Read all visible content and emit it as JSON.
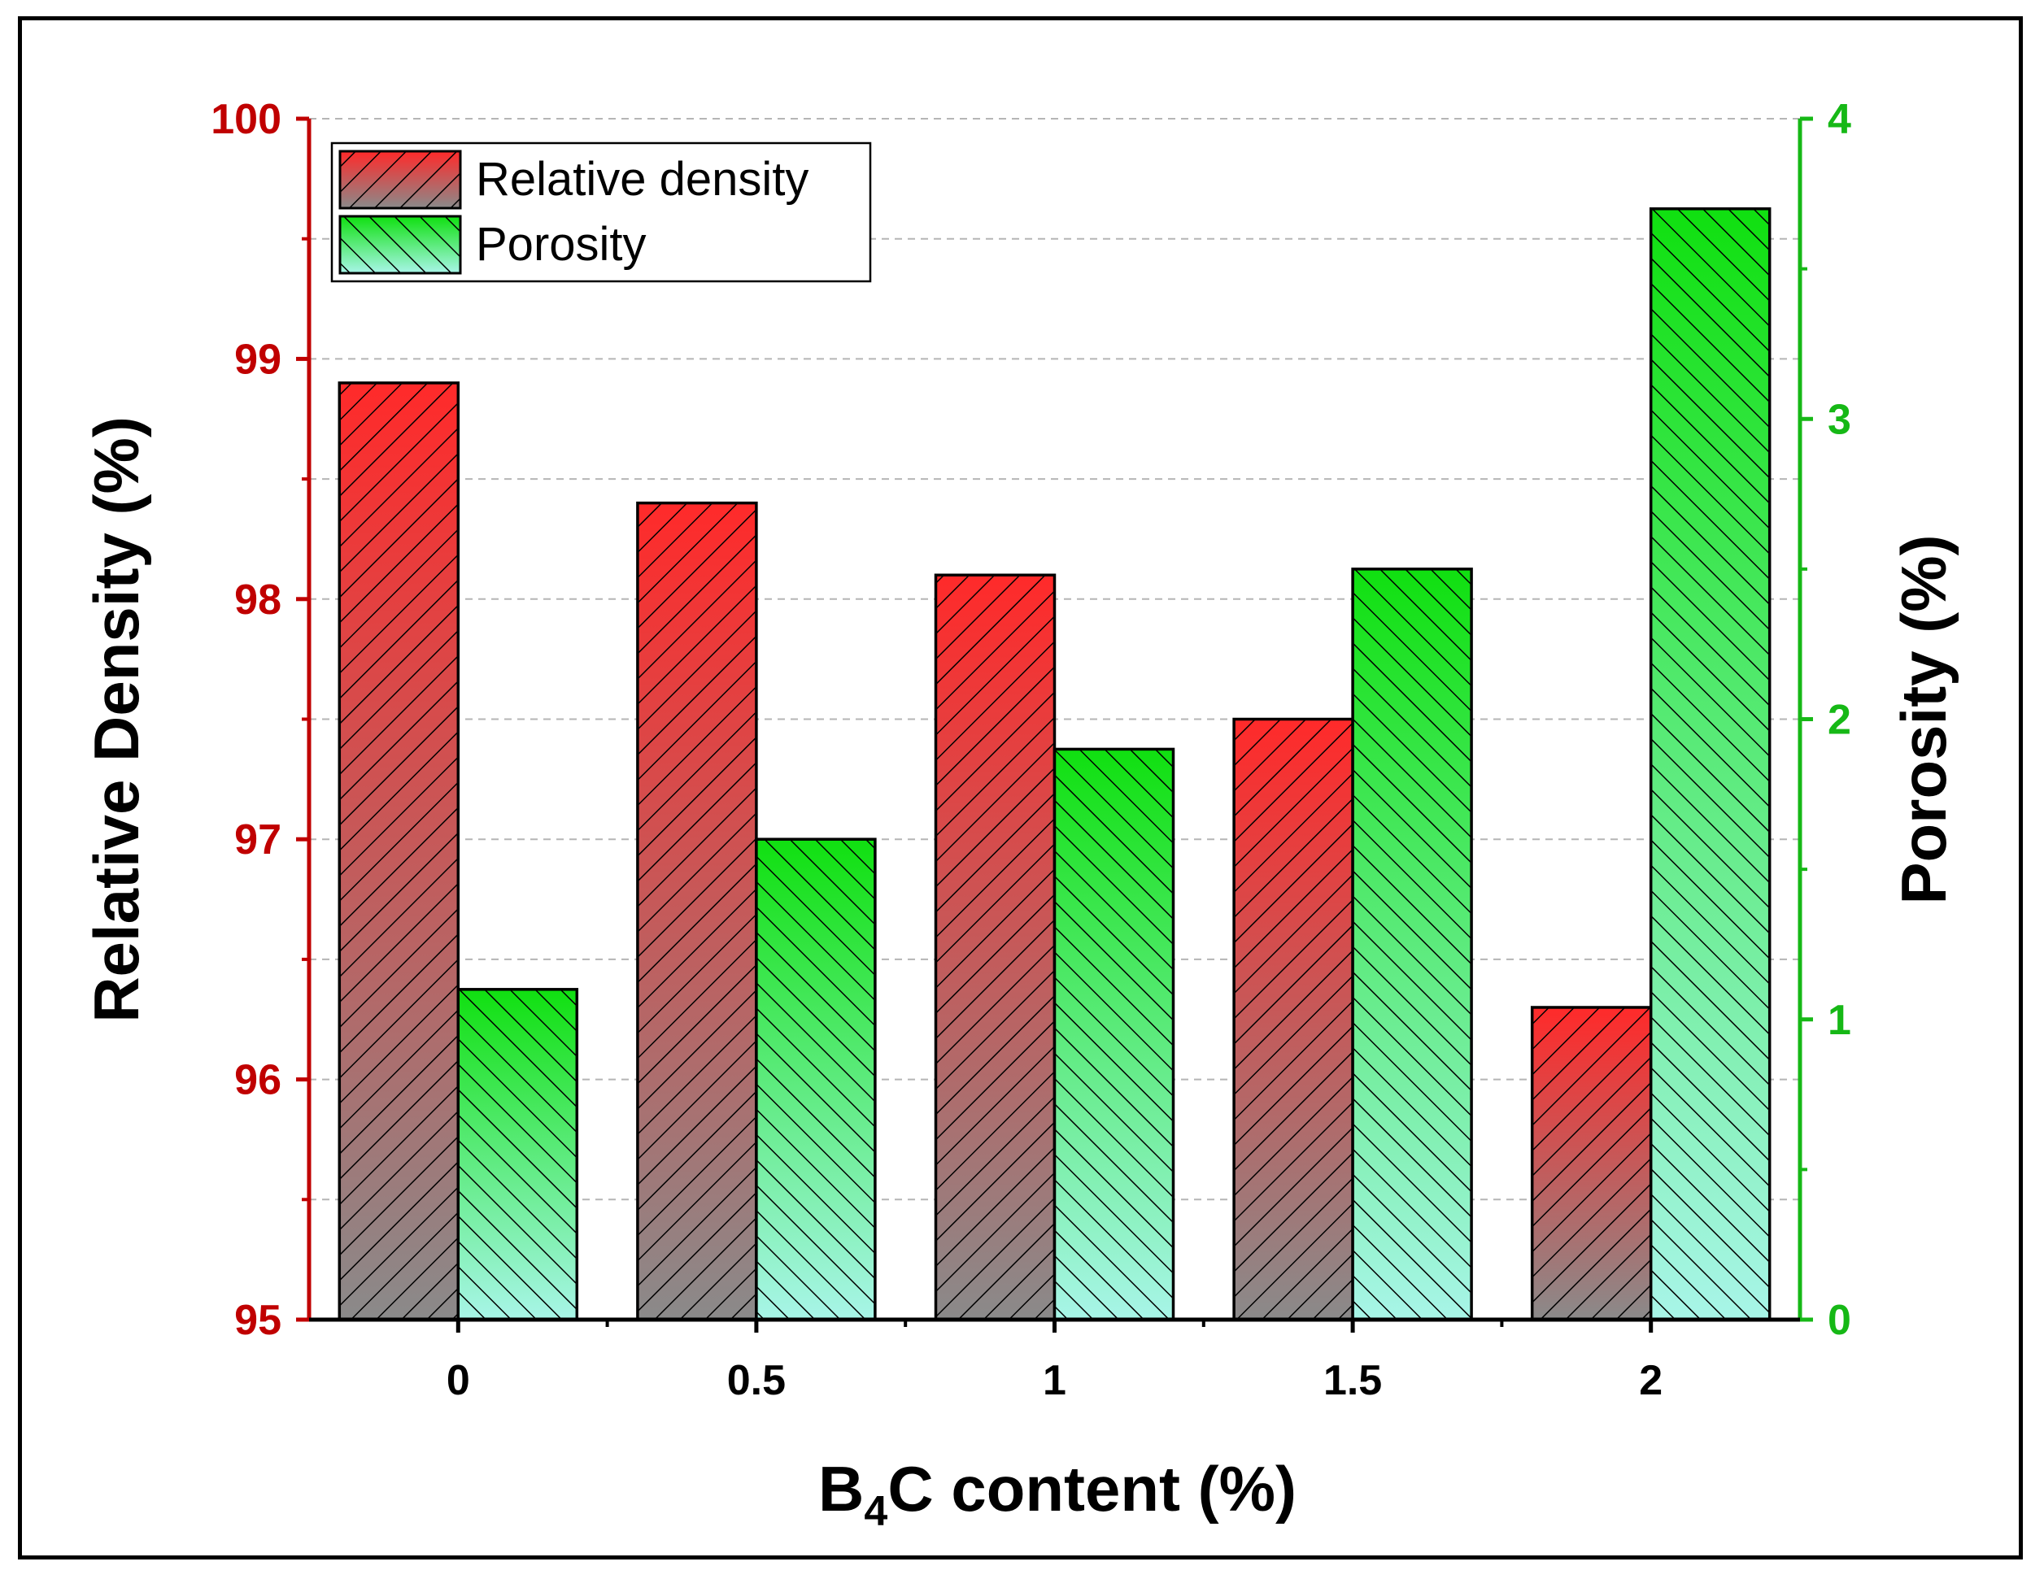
{
  "chart_data": {
    "type": "bar",
    "categories": [
      "0",
      "0.5",
      "1",
      "1.5",
      "2"
    ],
    "series": [
      {
        "name": "Relative density",
        "axis": "left",
        "values": [
          98.9,
          98.4,
          98.1,
          97.5,
          96.3
        ],
        "color_top": "#ff2a2a",
        "color_bottom": "#8a8a8a",
        "hatch": "forward"
      },
      {
        "name": "Porosity",
        "axis": "right",
        "values": [
          1.1,
          1.6,
          1.9,
          2.5,
          3.7
        ],
        "color_top": "#10e010",
        "color_bottom": "#a8f5e8",
        "hatch": "backward"
      }
    ],
    "xlabel_main": "B",
    "xlabel_sub": "4",
    "xlabel_rest": "C content (%)",
    "ylabel_left": "Relative Density (%)",
    "ylabel_right": "Porosity (%)",
    "ylim_left": [
      95,
      100
    ],
    "ylim_right": [
      0,
      4
    ],
    "yticks_left": [
      "95",
      "96",
      "97",
      "98",
      "99",
      "100"
    ],
    "yticks_right": [
      "0",
      "1",
      "2",
      "3",
      "4"
    ],
    "left_axis_color": "#c00000",
    "right_axis_color": "#16b816",
    "grid": "dashed horizontal",
    "legend_position": "top-left"
  }
}
